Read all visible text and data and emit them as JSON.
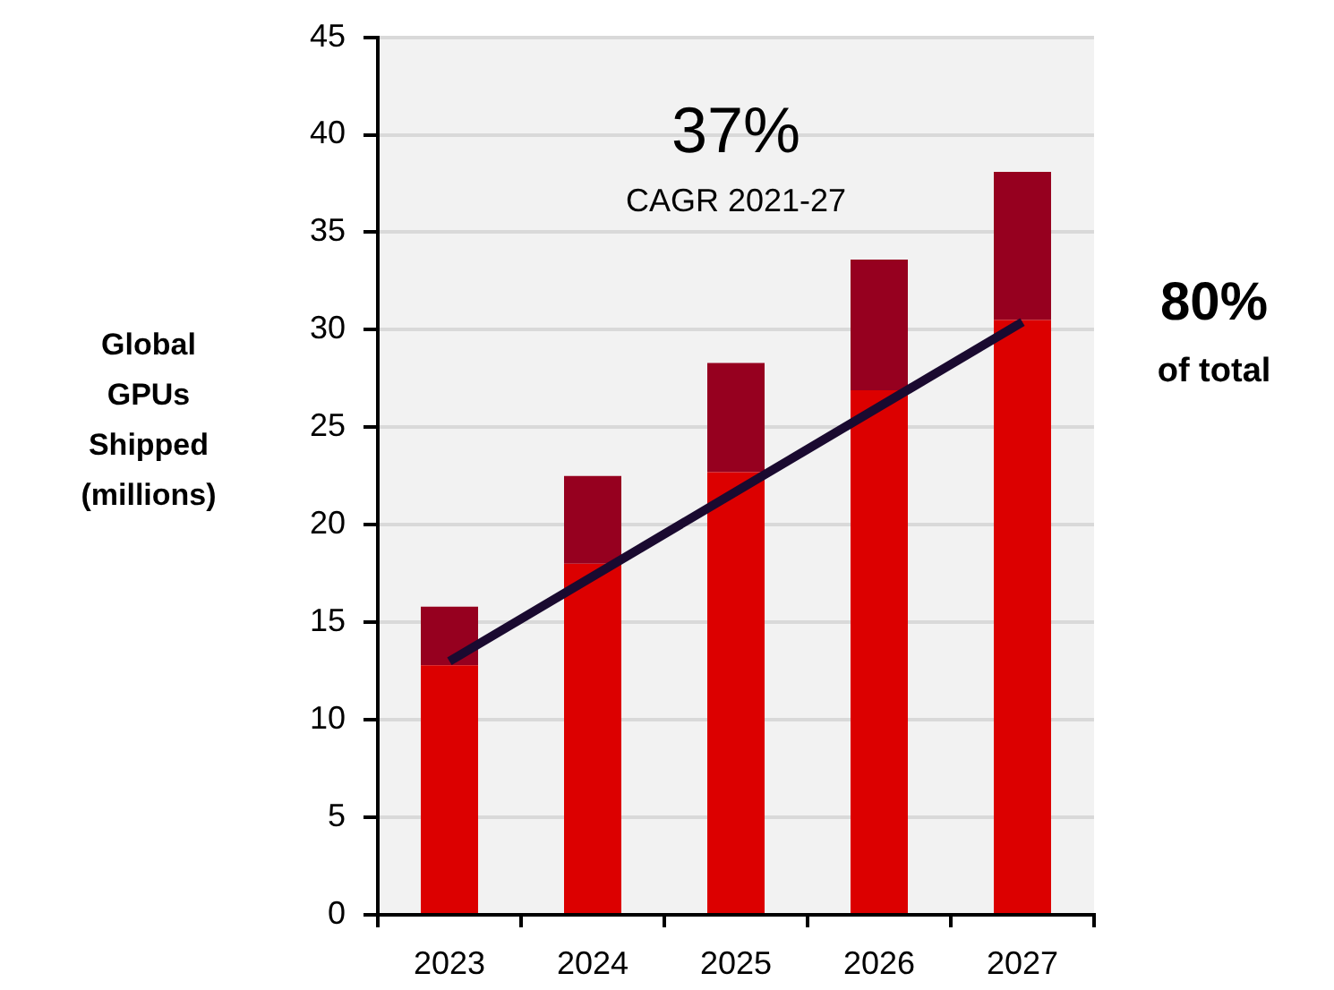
{
  "chart_data": {
    "type": "bar",
    "stacked": true,
    "ylabel": "Global GPUs Shipped (millions)",
    "categories": [
      "2023",
      "2024",
      "2025",
      "2026",
      "2027"
    ],
    "series": [
      {
        "color": "#dc0000",
        "values": [
          12.8,
          18.0,
          22.7,
          26.9,
          30.5
        ]
      },
      {
        "color": "#96001f",
        "values": [
          3.0,
          4.5,
          5.6,
          6.7,
          7.6
        ]
      },
      {
        "type": "line",
        "color": "#1a0a30",
        "values": [
          13.0,
          null,
          null,
          null,
          30.4
        ]
      }
    ],
    "ylim": [
      0,
      45
    ],
    "yticks": [
      0,
      5,
      10,
      15,
      20,
      25,
      30,
      35,
      40,
      45
    ],
    "grid": "y",
    "legend": false,
    "annotations": [
      "37%\nCAGR 2021-27",
      "80%\nof total"
    ]
  }
}
